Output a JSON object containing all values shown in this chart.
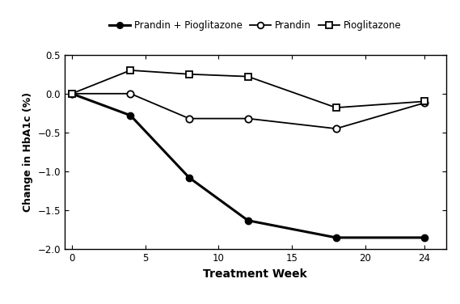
{
  "weeks": [
    0,
    4,
    8,
    12,
    18,
    24
  ],
  "prandin_pioglitazone": [
    0,
    -0.28,
    -1.08,
    -1.63,
    -1.85,
    -1.85
  ],
  "prandin": [
    0,
    0.0,
    -0.32,
    -0.32,
    -0.45,
    -0.12
  ],
  "pioglitazone": [
    0,
    0.3,
    0.25,
    0.22,
    -0.18,
    -0.1
  ],
  "xlabel": "Treatment Week",
  "ylabel": "Change in HbA1c (%)",
  "ylim": [
    -2.0,
    0.5
  ],
  "yticks": [
    -2.0,
    -1.5,
    -1.0,
    -0.5,
    0,
    0.5
  ],
  "xticks": [
    0,
    5,
    10,
    15,
    20,
    24
  ],
  "xlim": [
    -0.5,
    25.5
  ],
  "legend_labels": [
    "Prandin + Pioglitazone",
    "Prandin",
    "Pioglitazone"
  ],
  "line_color": "#000000",
  "bg_color": "#ffffff",
  "figsize": [
    5.69,
    3.76
  ],
  "dpi": 100
}
